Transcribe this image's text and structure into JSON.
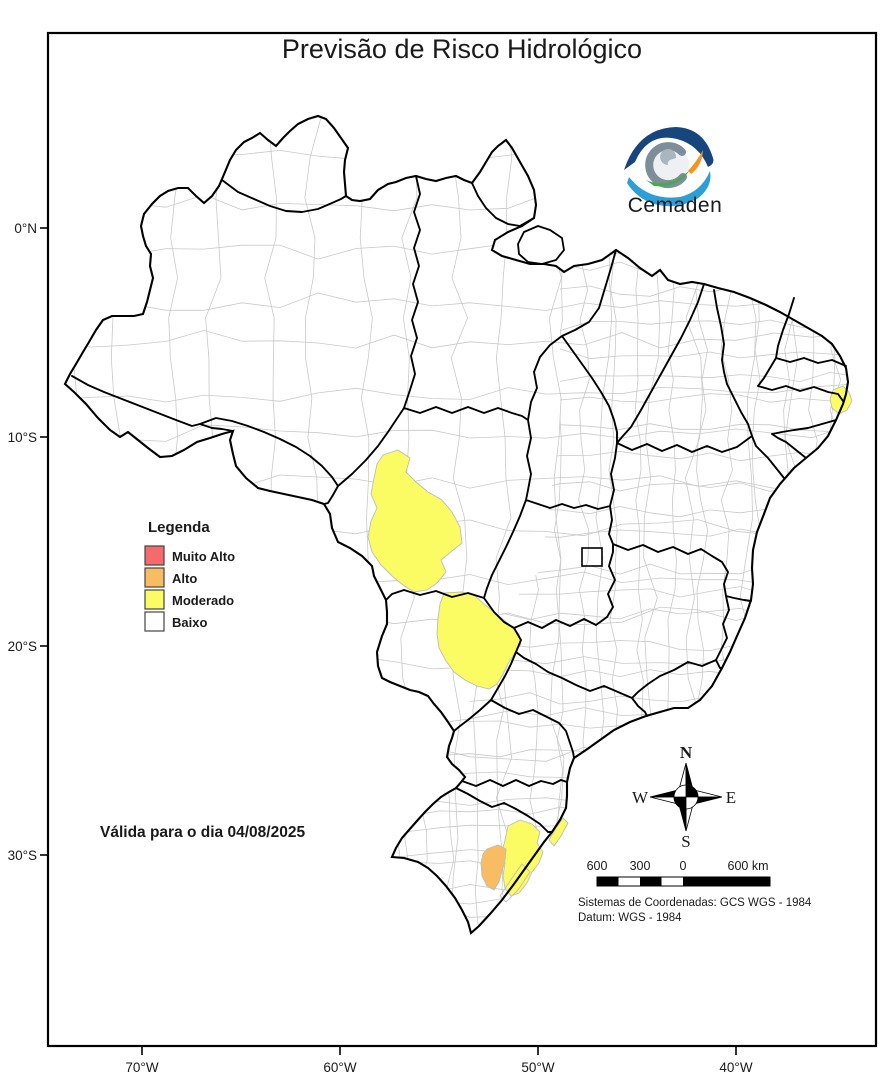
{
  "title": "Previsão de Risco Hidrológico",
  "logo": {
    "wordmark": "Cemaden",
    "wordmark_color": "#2A6A9B",
    "eye_dark_blue": "#17457E",
    "eye_light_blue": "#2D9FD8",
    "swoosh_green": "#3FAE49",
    "swoosh_orange": "#F7941E"
  },
  "legend": {
    "title": "Legenda",
    "items": [
      {
        "label": "Muito Alto",
        "color": "#F56A6B"
      },
      {
        "label": "Alto",
        "color": "#F8BC63"
      },
      {
        "label": "Moderado",
        "color": "#FBFB63"
      },
      {
        "label": "Baixo",
        "color": "#FFFFFF"
      }
    ]
  },
  "validity_note": "Válida para o dia 04/08/2025",
  "compass": {
    "n": "N",
    "s": "S",
    "e": "E",
    "w": "W"
  },
  "scale_bar": {
    "label_600_left": "600",
    "label_300": "300",
    "label_0": "0",
    "label_600_right": "600 km"
  },
  "crs": {
    "line1": "Sistemas de Coordenadas: GCS WGS - 1984",
    "line2": "Datum: WGS - 1984"
  },
  "axes": {
    "lat_ticks": [
      "0°N",
      "10°S",
      "20°S",
      "30°S"
    ],
    "lon_ticks": [
      "70°W",
      "60°W",
      "50°W",
      "40°W"
    ]
  },
  "map": {
    "country": "Brasil",
    "state_border_color": "#000000",
    "municipality_border_color": "#c9c9c9",
    "risk_regions": [
      {
        "level": "Moderado",
        "location": "north-central Mato Grosso"
      },
      {
        "level": "Moderado",
        "location": "northern Mato Grosso do Sul"
      },
      {
        "level": "Moderado",
        "location": "coastal Pernambuco"
      },
      {
        "level": "Moderado",
        "location": "east-central Rio Grande do Sul"
      },
      {
        "level": "Moderado",
        "location": "Rio Grande do Sul coastal strip"
      },
      {
        "level": "Alto",
        "location": "central Rio Grande do Sul"
      }
    ]
  }
}
